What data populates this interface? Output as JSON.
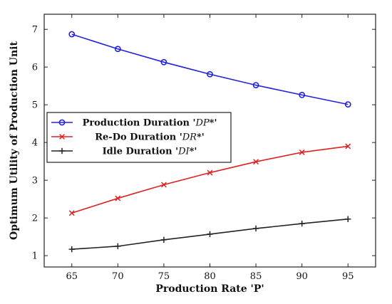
{
  "chart_data": {
    "type": "line",
    "title": "",
    "xlabel": "Production Rate 'P'",
    "ylabel": "Optimum Utility of Production Unit",
    "x": [
      65,
      70,
      75,
      80,
      85,
      90,
      95
    ],
    "xlim": [
      62,
      98
    ],
    "ylim": [
      0.7,
      7.4
    ],
    "x_ticks": [
      65,
      70,
      75,
      80,
      85,
      90,
      95
    ],
    "y_ticks": [
      1,
      2,
      3,
      4,
      5,
      6,
      7
    ],
    "grid": false,
    "legend_position": "center-left",
    "series": [
      {
        "name": "Production Duration 'DP*'",
        "label_prefix": "Production Duration '",
        "label_var": "DP",
        "label_suffix": "*'",
        "color": "#2222dd",
        "marker": "circle",
        "values": [
          6.87,
          6.48,
          6.13,
          5.81,
          5.52,
          5.26,
          5.01
        ]
      },
      {
        "name": "Re-Do Duration 'DR*'",
        "label_prefix": "Re-Do Duration '",
        "label_var": "DR",
        "label_suffix": "*'",
        "color": "#dd2222",
        "marker": "x",
        "values": [
          2.13,
          2.52,
          2.88,
          3.2,
          3.49,
          3.74,
          3.9
        ]
      },
      {
        "name": "Idle Duration 'DI*'",
        "label_prefix": "Idle Duration '",
        "label_var": "DI",
        "label_suffix": "*'",
        "color": "#222222",
        "marker": "plus",
        "values": [
          1.17,
          1.25,
          1.42,
          1.57,
          1.72,
          1.85,
          1.97
        ]
      }
    ]
  }
}
